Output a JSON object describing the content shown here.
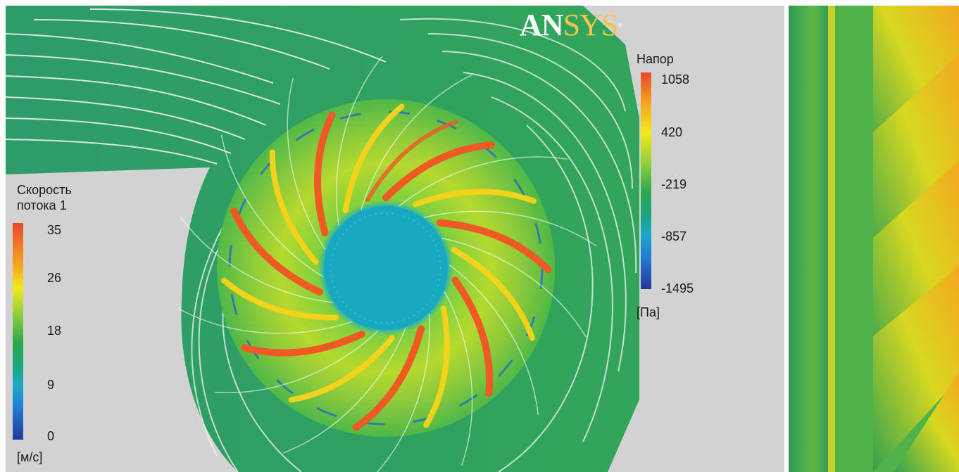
{
  "logo": {
    "part_a": "AN",
    "part_b": "SYS",
    "mark": "®"
  },
  "velocity_legend": {
    "title_line1": "Скорость",
    "title_line2": "потока 1",
    "ticks": [
      "35",
      "26",
      "18",
      "9",
      "0"
    ],
    "unit": "[м/с]",
    "colors": [
      "#e8482b",
      "#f2ea1b",
      "#2ea84a",
      "#1ba8c8",
      "#25399a"
    ]
  },
  "pressure_legend": {
    "title": "Напор",
    "ticks": [
      "1058",
      "420",
      "-219",
      "-857",
      "-1495"
    ],
    "unit": "[Па]",
    "colors": [
      "#e8482b",
      "#f2ea1b",
      "#2ea84a",
      "#1ba8c8",
      "#25399a"
    ]
  },
  "colors": {
    "background": "#d2d2d2",
    "volute": "#2e9e58",
    "hub": "#18a8c0",
    "streamline": "#f4f4f4",
    "blade_hot": "#ef5a24",
    "blade_warm": "#f2d21b"
  }
}
